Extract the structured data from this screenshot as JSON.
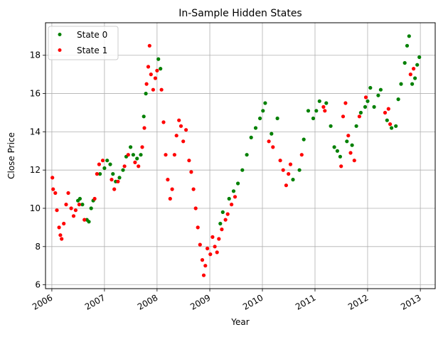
{
  "chart_data": {
    "type": "scatter",
    "title": "In-Sample Hidden States",
    "xlabel": "Year",
    "ylabel": "Close Price",
    "xlim": [
      "2005-11-18",
      "2013-04-14"
    ],
    "ylim": [
      5.8,
      19.7
    ],
    "grid": true,
    "legend_position": "top-left",
    "x_ticks": [
      "2006",
      "2007",
      "2008",
      "2009",
      "2010",
      "2011",
      "2012",
      "2013"
    ],
    "y_ticks": [
      6,
      8,
      10,
      12,
      14,
      16,
      18
    ],
    "series": [
      {
        "name": "State 0",
        "color": "#008000",
        "points": [
          [
            "2006-07-01",
            10.4
          ],
          [
            "2006-07-15",
            10.5
          ],
          [
            "2006-08-01",
            10.2
          ],
          [
            "2006-09-01",
            9.4
          ],
          [
            "2006-09-15",
            9.3
          ],
          [
            "2006-10-01",
            10.0
          ],
          [
            "2006-10-15",
            10.4
          ],
          [
            "2006-12-01",
            11.8
          ],
          [
            "2007-01-01",
            12.1
          ],
          [
            "2007-01-20",
            12.5
          ],
          [
            "2007-02-10",
            12.3
          ],
          [
            "2007-03-01",
            11.8
          ],
          [
            "2007-03-20",
            11.4
          ],
          [
            "2007-04-15",
            11.6
          ],
          [
            "2007-05-10",
            12.0
          ],
          [
            "2007-06-01",
            12.7
          ],
          [
            "2007-07-01",
            13.2
          ],
          [
            "2007-07-20",
            12.8
          ],
          [
            "2007-08-15",
            12.6
          ],
          [
            "2007-09-10",
            12.8
          ],
          [
            "2007-10-01",
            14.8
          ],
          [
            "2007-10-15",
            16.0
          ],
          [
            "2008-01-10",
            17.8
          ],
          [
            "2008-01-25",
            17.3
          ],
          [
            "2009-03-15",
            9.2
          ],
          [
            "2009-04-01",
            9.8
          ],
          [
            "2009-05-15",
            10.5
          ],
          [
            "2009-06-15",
            10.9
          ],
          [
            "2009-07-15",
            11.3
          ],
          [
            "2009-08-15",
            12.0
          ],
          [
            "2009-09-15",
            12.8
          ],
          [
            "2009-10-15",
            13.7
          ],
          [
            "2009-11-15",
            14.2
          ],
          [
            "2009-12-15",
            14.7
          ],
          [
            "2010-01-05",
            15.1
          ],
          [
            "2010-01-20",
            15.5
          ],
          [
            "2010-03-05",
            13.9
          ],
          [
            "2010-04-15",
            14.7
          ],
          [
            "2010-08-01",
            11.5
          ],
          [
            "2010-09-15",
            12.0
          ],
          [
            "2010-10-15",
            13.6
          ],
          [
            "2010-11-15",
            15.1
          ],
          [
            "2010-12-20",
            14.7
          ],
          [
            "2011-01-10",
            15.1
          ],
          [
            "2011-02-01",
            15.6
          ],
          [
            "2011-03-20",
            15.5
          ],
          [
            "2011-04-20",
            14.3
          ],
          [
            "2011-05-15",
            13.2
          ],
          [
            "2011-06-05",
            13.0
          ],
          [
            "2011-06-25",
            12.7
          ],
          [
            "2011-08-10",
            13.5
          ],
          [
            "2011-09-15",
            13.3
          ],
          [
            "2011-10-15",
            14.3
          ],
          [
            "2011-11-15",
            15.0
          ],
          [
            "2011-12-15",
            15.3
          ],
          [
            "2012-01-01",
            15.6
          ],
          [
            "2012-01-20",
            16.3
          ],
          [
            "2012-02-15",
            15.3
          ],
          [
            "2012-03-15",
            15.9
          ],
          [
            "2012-04-01",
            16.2
          ],
          [
            "2012-05-15",
            14.6
          ],
          [
            "2012-06-15",
            14.2
          ],
          [
            "2012-07-15",
            14.3
          ],
          [
            "2012-08-01",
            15.7
          ],
          [
            "2012-08-20",
            16.5
          ],
          [
            "2012-09-15",
            17.6
          ],
          [
            "2012-10-01",
            18.5
          ],
          [
            "2012-10-15",
            19.0
          ],
          [
            "2012-11-05",
            16.5
          ],
          [
            "2012-11-25",
            16.8
          ],
          [
            "2012-12-10",
            17.5
          ],
          [
            "2012-12-25",
            17.9
          ]
        ]
      },
      {
        "name": "State 1",
        "color": "#ff0000",
        "points": [
          [
            "2006-01-05",
            11.6
          ],
          [
            "2006-01-10",
            11.0
          ],
          [
            "2006-01-25",
            10.8
          ],
          [
            "2006-02-05",
            9.9
          ],
          [
            "2006-02-20",
            9.0
          ],
          [
            "2006-03-01",
            8.6
          ],
          [
            "2006-03-10",
            8.4
          ],
          [
            "2006-03-25",
            9.2
          ],
          [
            "2006-04-10",
            10.2
          ],
          [
            "2006-04-25",
            10.8
          ],
          [
            "2006-05-15",
            10.0
          ],
          [
            "2006-06-01",
            9.6
          ],
          [
            "2006-06-15",
            9.9
          ],
          [
            "2006-07-10",
            10.2
          ],
          [
            "2006-08-15",
            9.4
          ],
          [
            "2006-10-25",
            10.5
          ],
          [
            "2006-11-10",
            11.8
          ],
          [
            "2006-11-25",
            12.3
          ],
          [
            "2006-12-20",
            12.5
          ],
          [
            "2007-02-20",
            11.5
          ],
          [
            "2007-03-10",
            11.0
          ],
          [
            "2007-04-05",
            11.4
          ],
          [
            "2007-05-20",
            12.2
          ],
          [
            "2007-06-15",
            12.8
          ],
          [
            "2007-08-01",
            12.4
          ],
          [
            "2007-08-25",
            12.2
          ],
          [
            "2007-09-20",
            13.2
          ],
          [
            "2007-10-05",
            14.2
          ],
          [
            "2007-10-20",
            16.5
          ],
          [
            "2007-11-01",
            17.4
          ],
          [
            "2007-11-10",
            18.5
          ],
          [
            "2007-11-20",
            17.0
          ],
          [
            "2007-12-05",
            16.2
          ],
          [
            "2007-12-20",
            16.8
          ],
          [
            "2008-01-01",
            17.2
          ],
          [
            "2008-02-01",
            16.2
          ],
          [
            "2008-02-15",
            14.5
          ],
          [
            "2008-03-01",
            12.8
          ],
          [
            "2008-03-15",
            11.5
          ],
          [
            "2008-04-01",
            10.5
          ],
          [
            "2008-04-15",
            11.0
          ],
          [
            "2008-05-01",
            12.8
          ],
          [
            "2008-05-15",
            13.8
          ],
          [
            "2008-06-01",
            14.6
          ],
          [
            "2008-06-15",
            14.3
          ],
          [
            "2008-07-01",
            13.5
          ],
          [
            "2008-07-20",
            14.1
          ],
          [
            "2008-08-10",
            12.5
          ],
          [
            "2008-08-25",
            11.9
          ],
          [
            "2008-09-10",
            11.0
          ],
          [
            "2008-09-25",
            10.0
          ],
          [
            "2008-10-10",
            9.0
          ],
          [
            "2008-10-25",
            8.1
          ],
          [
            "2008-11-10",
            7.3
          ],
          [
            "2008-11-20",
            6.5
          ],
          [
            "2008-12-01",
            7.0
          ],
          [
            "2008-12-15",
            7.9
          ],
          [
            "2009-01-05",
            7.6
          ],
          [
            "2009-01-20",
            8.5
          ],
          [
            "2009-02-05",
            8.0
          ],
          [
            "2009-02-20",
            7.7
          ],
          [
            "2009-03-05",
            8.4
          ],
          [
            "2009-03-25",
            8.9
          ],
          [
            "2009-04-20",
            9.4
          ],
          [
            "2009-05-05",
            9.7
          ],
          [
            "2009-06-01",
            10.2
          ],
          [
            "2009-06-25",
            10.6
          ],
          [
            "2010-02-15",
            13.5
          ],
          [
            "2010-03-15",
            13.2
          ],
          [
            "2010-05-05",
            12.5
          ],
          [
            "2010-05-25",
            12.0
          ],
          [
            "2010-06-15",
            11.2
          ],
          [
            "2010-07-01",
            11.8
          ],
          [
            "2010-07-15",
            12.3
          ],
          [
            "2010-10-01",
            12.8
          ],
          [
            "2011-03-01",
            15.3
          ],
          [
            "2011-03-10",
            15.1
          ],
          [
            "2011-07-01",
            12.2
          ],
          [
            "2011-07-15",
            14.8
          ],
          [
            "2011-08-01",
            15.5
          ],
          [
            "2011-08-20",
            13.8
          ],
          [
            "2011-09-05",
            12.9
          ],
          [
            "2011-10-01",
            12.5
          ],
          [
            "2011-11-05",
            14.8
          ],
          [
            "2011-12-20",
            15.8
          ],
          [
            "2012-05-01",
            15.0
          ],
          [
            "2012-05-25",
            15.2
          ],
          [
            "2012-06-05",
            14.4
          ],
          [
            "2012-10-25",
            17.0
          ],
          [
            "2012-11-15",
            17.3
          ]
        ]
      }
    ]
  }
}
